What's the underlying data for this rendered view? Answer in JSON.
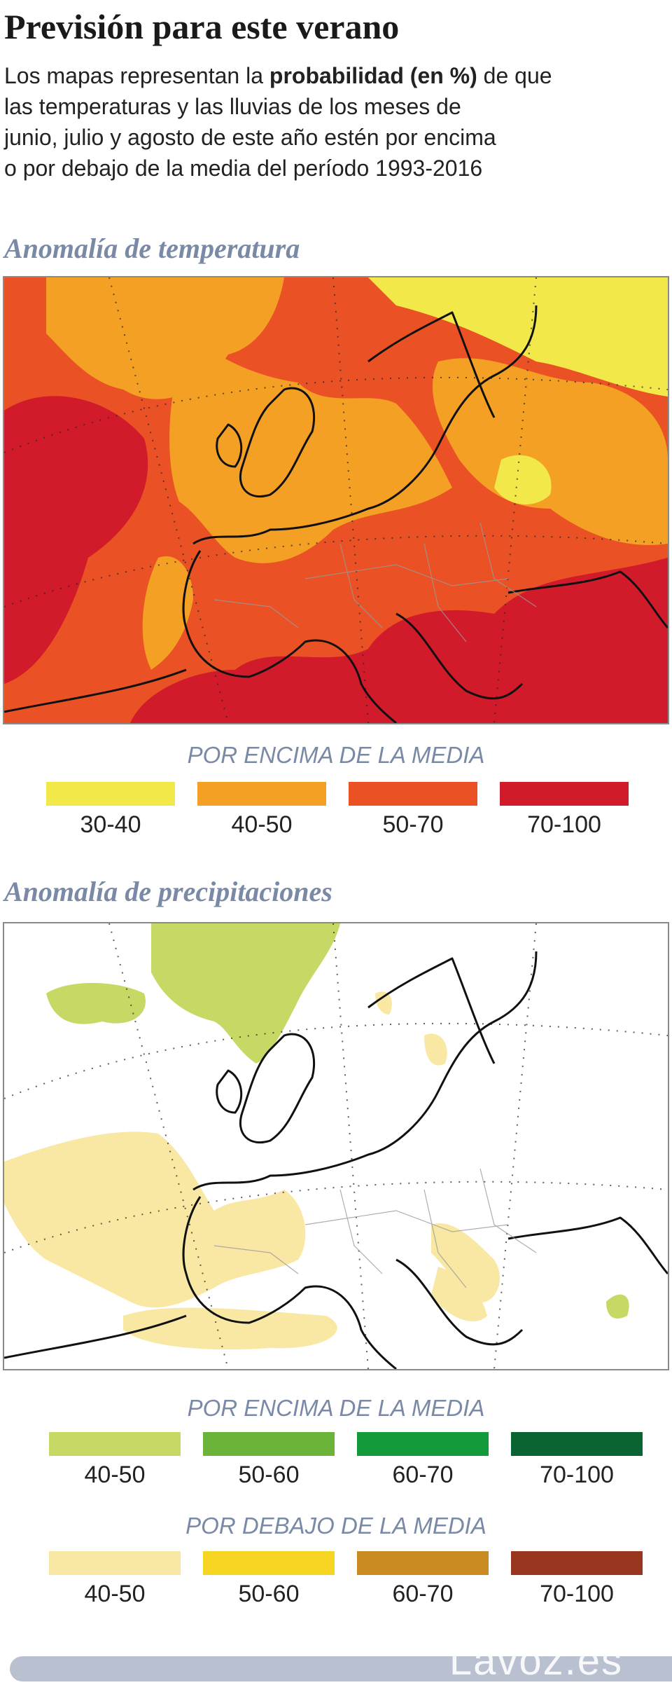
{
  "header": {
    "title": "Previsión para este verano",
    "intro_line1_pre": "Los mapas representan la ",
    "intro_line1_bold": "probabilidad (en %)",
    "intro_line1_post": " de que",
    "intro_line2": "las temperaturas y las lluvias de los meses de",
    "intro_line3": "junio, julio y agosto de este año estén por encima",
    "intro_line4": "o por debajo de la media del período 1993-2016"
  },
  "temperature": {
    "title": "Anomalía de temperatura",
    "legend_heading": "POR ENCIMA DE LA MEDIA",
    "legend": [
      {
        "label": "30-40",
        "color": "#f2e84a"
      },
      {
        "label": "40-50",
        "color": "#f3a024"
      },
      {
        "label": "50-70",
        "color": "#ea5125"
      },
      {
        "label": "70-100",
        "color": "#d11a2a"
      }
    ]
  },
  "precipitation": {
    "title": "Anomalía de precipitaciones",
    "legend_above_heading": "POR ENCIMA DE LA MEDIA",
    "legend_above": [
      {
        "label": "40-50",
        "color": "#c7d865"
      },
      {
        "label": "50-60",
        "color": "#6cb33a"
      },
      {
        "label": "60-70",
        "color": "#139a3b"
      },
      {
        "label": "70-100",
        "color": "#0a6431"
      }
    ],
    "legend_below_heading": "POR DEBAJO DE LA MEDIA",
    "legend_below": [
      {
        "label": "40-50",
        "color": "#f8e8a4"
      },
      {
        "label": "50-60",
        "color": "#f6d523"
      },
      {
        "label": "60-70",
        "color": "#c98a22"
      },
      {
        "label": "70-100",
        "color": "#993620"
      }
    ]
  },
  "footer": {
    "logo": "Lavoz.es"
  }
}
